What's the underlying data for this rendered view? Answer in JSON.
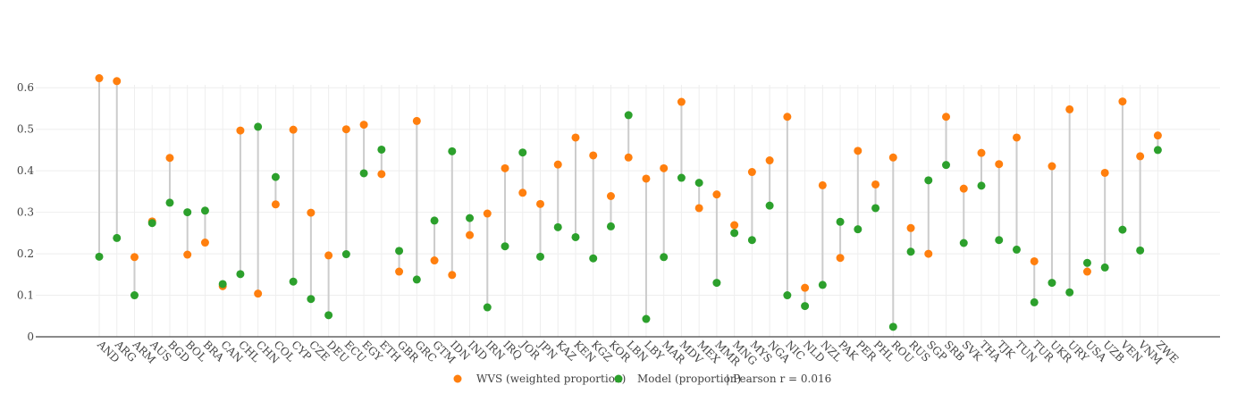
{
  "chart_data": {
    "type": "scatter",
    "ylim": [
      0,
      0.65
    ],
    "yticks": [
      0,
      0.1,
      0.2,
      0.3,
      0.4,
      0.5,
      0.6
    ],
    "ytick_labels": [
      "0",
      "0.1",
      "0.2",
      "0.3",
      "0.4",
      "0.5",
      "0.6"
    ],
    "grid": true,
    "legend_position": "bottom-center",
    "categories": [
      "AND",
      "ARG",
      "ARM",
      "AUS",
      "BGD",
      "BOL",
      "BRA",
      "CAN",
      "CHL",
      "CHN",
      "COL",
      "CYP",
      "CZE",
      "DEU",
      "ECU",
      "EGY",
      "ETH",
      "GBR",
      "GRC",
      "GTM",
      "IDN",
      "IND",
      "IRN",
      "IRQ",
      "JOR",
      "JPN",
      "KAZ",
      "KEN",
      "KGZ",
      "KOR",
      "LBN",
      "LBY",
      "MAR",
      "MDV",
      "MEX",
      "MMR",
      "MNG",
      "MYS",
      "NGA",
      "NIC",
      "NLD",
      "NZL",
      "PAK",
      "PER",
      "PHL",
      "ROU",
      "RUS",
      "SGP",
      "SRB",
      "SVK",
      "THA",
      "TJK",
      "TUN",
      "TUR",
      "UKR",
      "URY",
      "USA",
      "UZB",
      "VEN",
      "VNM",
      "ZWE"
    ],
    "series": [
      {
        "name": "WVS (weighted proportion)",
        "color": "#ff7f0e",
        "values": [
          0.623,
          0.616,
          0.192,
          0.278,
          0.431,
          0.198,
          0.227,
          0.122,
          0.497,
          0.104,
          0.319,
          0.499,
          0.299,
          0.196,
          0.5,
          0.511,
          0.392,
          0.157,
          0.52,
          0.184,
          0.149,
          0.245,
          0.297,
          0.406,
          0.347,
          0.32,
          0.415,
          0.48,
          0.437,
          0.339,
          0.432,
          0.381,
          0.406,
          0.566,
          0.31,
          0.343,
          0.269,
          0.397,
          0.425,
          0.53,
          0.118,
          0.365,
          0.19,
          0.448,
          0.367,
          0.432,
          0.262,
          0.2,
          0.53,
          0.357,
          0.443,
          0.416,
          0.48,
          0.182,
          0.411,
          0.548,
          0.157,
          0.395,
          0.567,
          0.435,
          0.485
        ]
      },
      {
        "name": "Model (proportion)",
        "color": "#2ca02c",
        "values": [
          0.193,
          0.238,
          0.1,
          0.274,
          0.323,
          0.3,
          0.304,
          0.127,
          0.151,
          0.506,
          0.385,
          0.133,
          0.091,
          0.052,
          0.199,
          0.394,
          0.451,
          0.207,
          0.138,
          0.28,
          0.447,
          0.286,
          0.071,
          0.218,
          0.444,
          0.193,
          0.264,
          0.24,
          0.189,
          0.266,
          0.534,
          0.043,
          0.192,
          0.383,
          0.371,
          0.13,
          0.25,
          0.233,
          0.316,
          0.1,
          0.074,
          0.125,
          0.277,
          0.259,
          0.31,
          0.024,
          0.205,
          0.377,
          0.414,
          0.226,
          0.364,
          0.233,
          0.21,
          0.083,
          0.13,
          0.107,
          0.178,
          0.167,
          0.258,
          0.208,
          0.45
        ]
      }
    ],
    "annotation": "Pearson r = 0.016"
  },
  "legend": {
    "wvs_label": "WVS (weighted proportion)",
    "model_label": "Model (proportion)",
    "separator": "|",
    "pearson_label": "Pearson r = 0.016"
  },
  "colors": {
    "wvs": "#ff7f0e",
    "model": "#2ca02c",
    "connector": "#cccccc",
    "grid": "#eeeeee",
    "axis": "#444444"
  }
}
